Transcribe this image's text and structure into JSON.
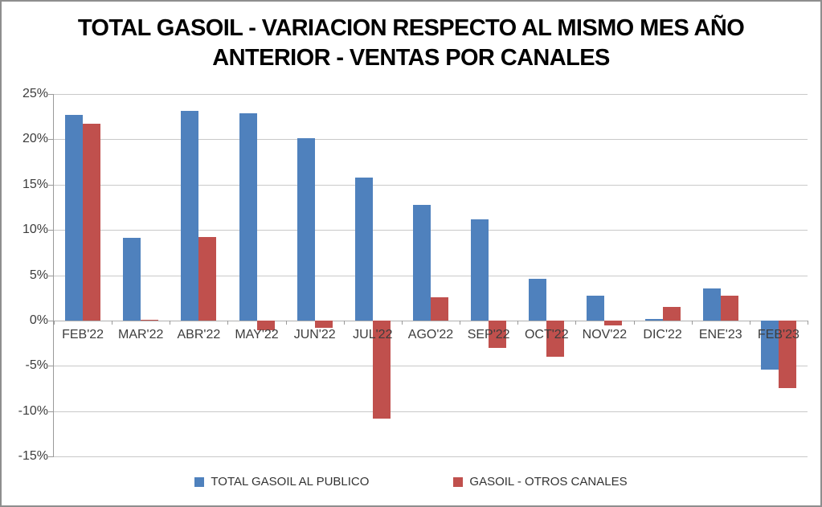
{
  "chart_data": {
    "type": "bar",
    "title": "TOTAL GASOIL - VARIACION RESPECTO AL MISMO MES AÑO ANTERIOR - VENTAS POR CANALES",
    "title_lines": [
      "TOTAL GASOIL - VARIACION RESPECTO AL MISMO MES AÑO",
      "ANTERIOR - VENTAS POR CANALES"
    ],
    "categories": [
      "FEB'22",
      "MAR'22",
      "ABR'22",
      "MAY'22",
      "JUN'22",
      "JUL'22",
      "AGO'22",
      "SEP'22",
      "OCT'22",
      "NOV'22",
      "DIC'22",
      "ENE'23",
      "FEB'23"
    ],
    "series": [
      {
        "name": "TOTAL GASOIL AL PUBLICO",
        "color": "#4F81BD",
        "values": [
          22.7,
          9.1,
          23.1,
          22.9,
          20.1,
          15.8,
          12.8,
          11.2,
          4.6,
          2.7,
          0.2,
          3.5,
          -5.4
        ]
      },
      {
        "name": "GASOIL - OTROS CANALES",
        "color": "#C0504D",
        "values": [
          21.7,
          0.1,
          9.2,
          -1.1,
          -0.8,
          -10.8,
          2.6,
          -3.0,
          -4.0,
          -0.5,
          1.5,
          2.7,
          -7.5
        ]
      }
    ],
    "yticks": [
      {
        "v": 25,
        "label": "25%"
      },
      {
        "v": 20,
        "label": "20%"
      },
      {
        "v": 15,
        "label": "15%"
      },
      {
        "v": 10,
        "label": "10%"
      },
      {
        "v": 5,
        "label": "5%"
      },
      {
        "v": 0,
        "label": "0%"
      },
      {
        "v": -5,
        "label": "-5%"
      },
      {
        "v": -10,
        "label": "-10%"
      },
      {
        "v": -15,
        "label": "-15%"
      }
    ],
    "ylim": [
      -15,
      25
    ],
    "unit": "%",
    "grid": true,
    "legend_position": "bottom"
  }
}
